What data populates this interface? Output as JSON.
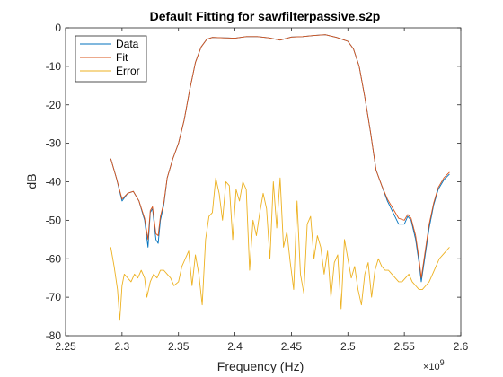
{
  "chart_data": {
    "type": "line",
    "title": "Default Fitting for sawfilterpassive.s2p",
    "xlabel": "Frequency (Hz)",
    "ylabel": "dB",
    "x_multiplier_label": "×10",
    "x_multiplier_exponent": "9",
    "xlim": [
      2.25,
      2.6
    ],
    "ylim": [
      -80,
      0
    ],
    "x_ticks": [
      2.25,
      2.3,
      2.35,
      2.4,
      2.45,
      2.5,
      2.55,
      2.6
    ],
    "x_tick_labels": [
      "2.25",
      "2.3",
      "2.35",
      "2.4",
      "2.45",
      "2.5",
      "2.55",
      "2.6"
    ],
    "y_ticks": [
      0,
      -10,
      -20,
      -30,
      -40,
      -50,
      -60,
      -70,
      -80
    ],
    "y_tick_labels": [
      "0",
      "-10",
      "-20",
      "-30",
      "-40",
      "-50",
      "-60",
      "-70",
      "-80"
    ],
    "grid": false,
    "legend_position": "top-left",
    "series": [
      {
        "name": "Data",
        "color": "#0072BD",
        "x": [
          2.29,
          2.295,
          2.3,
          2.305,
          2.31,
          2.315,
          2.32,
          2.323,
          2.325,
          2.327,
          2.33,
          2.332,
          2.334,
          2.337,
          2.34,
          2.345,
          2.35,
          2.355,
          2.36,
          2.365,
          2.37,
          2.375,
          2.38,
          2.39,
          2.4,
          2.41,
          2.42,
          2.43,
          2.44,
          2.45,
          2.46,
          2.47,
          2.48,
          2.49,
          2.5,
          2.505,
          2.51,
          2.515,
          2.52,
          2.525,
          2.53,
          2.535,
          2.54,
          2.545,
          2.55,
          2.553,
          2.556,
          2.56,
          2.563,
          2.565,
          2.568,
          2.572,
          2.576,
          2.58,
          2.585,
          2.59
        ],
        "y": [
          -34,
          -39,
          -45,
          -43,
          -42.5,
          -45,
          -50,
          -57,
          -48,
          -47,
          -55,
          -56,
          -50,
          -46,
          -39,
          -34,
          -30,
          -24,
          -16,
          -9,
          -5,
          -3,
          -2.5,
          -2.6,
          -2.7,
          -2.3,
          -2.3,
          -2.6,
          -3.2,
          -2.4,
          -2.3,
          -2,
          -1.8,
          -2.5,
          -3.5,
          -5.5,
          -10,
          -18,
          -27,
          -37,
          -41,
          -45,
          -48,
          -51,
          -51,
          -49,
          -50,
          -55,
          -61,
          -66,
          -60,
          -52,
          -46,
          -42,
          -39.5,
          -38
        ]
      },
      {
        "name": "Fit",
        "color": "#D95319",
        "x": [
          2.29,
          2.295,
          2.3,
          2.305,
          2.31,
          2.315,
          2.32,
          2.323,
          2.325,
          2.327,
          2.33,
          2.332,
          2.334,
          2.337,
          2.34,
          2.345,
          2.35,
          2.355,
          2.36,
          2.365,
          2.37,
          2.375,
          2.38,
          2.39,
          2.4,
          2.41,
          2.42,
          2.43,
          2.44,
          2.45,
          2.46,
          2.47,
          2.48,
          2.49,
          2.5,
          2.505,
          2.51,
          2.515,
          2.52,
          2.525,
          2.53,
          2.535,
          2.54,
          2.545,
          2.55,
          2.553,
          2.556,
          2.56,
          2.563,
          2.565,
          2.568,
          2.572,
          2.576,
          2.58,
          2.585,
          2.59
        ],
        "y": [
          -34,
          -39,
          -44.5,
          -43,
          -42.5,
          -45,
          -49.5,
          -55,
          -47.5,
          -46.5,
          -53.5,
          -54,
          -49,
          -45.5,
          -39,
          -34,
          -30,
          -24,
          -16,
          -9,
          -5,
          -3,
          -2.5,
          -2.6,
          -2.7,
          -2.3,
          -2.3,
          -2.6,
          -3.2,
          -2.4,
          -2.3,
          -2,
          -1.8,
          -2.5,
          -3.5,
          -5.5,
          -10,
          -18,
          -27,
          -37,
          -41,
          -44.5,
          -47,
          -49.5,
          -50,
          -48.5,
          -49.5,
          -54,
          -60,
          -65,
          -59,
          -51,
          -45.5,
          -41.5,
          -39,
          -37.5
        ]
      },
      {
        "name": "Error",
        "color": "#EDB120",
        "x": [
          2.29,
          2.293,
          2.296,
          2.298,
          2.3,
          2.302,
          2.305,
          2.308,
          2.311,
          2.314,
          2.317,
          2.32,
          2.322,
          2.325,
          2.328,
          2.331,
          2.334,
          2.337,
          2.34,
          2.343,
          2.346,
          2.35,
          2.353,
          2.356,
          2.359,
          2.362,
          2.365,
          2.368,
          2.371,
          2.374,
          2.377,
          2.38,
          2.383,
          2.386,
          2.389,
          2.392,
          2.395,
          2.398,
          2.401,
          2.404,
          2.407,
          2.41,
          2.413,
          2.416,
          2.419,
          2.422,
          2.425,
          2.428,
          2.431,
          2.434,
          2.437,
          2.44,
          2.443,
          2.446,
          2.449,
          2.452,
          2.455,
          2.458,
          2.461,
          2.464,
          2.467,
          2.47,
          2.473,
          2.476,
          2.479,
          2.482,
          2.485,
          2.488,
          2.491,
          2.494,
          2.497,
          2.5,
          2.503,
          2.506,
          2.509,
          2.512,
          2.515,
          2.518,
          2.521,
          2.524,
          2.527,
          2.53,
          2.533,
          2.536,
          2.539,
          2.542,
          2.545,
          2.548,
          2.551,
          2.554,
          2.557,
          2.56,
          2.563,
          2.566,
          2.569,
          2.572,
          2.575,
          2.578,
          2.581,
          2.584,
          2.587,
          2.59
        ],
        "y": [
          -57,
          -62,
          -68,
          -76,
          -67,
          -64,
          -65,
          -66,
          -64,
          -65,
          -63,
          -65,
          -70,
          -66,
          -64,
          -65,
          -63,
          -63,
          -64,
          -65,
          -67,
          -66,
          -62,
          -60,
          -58,
          -67,
          -59,
          -64,
          -72,
          -55,
          -49,
          -48,
          -39,
          -43,
          -50,
          -40,
          -41,
          -55,
          -42,
          -45,
          -40,
          -42,
          -63,
          -50,
          -54,
          -48,
          -43,
          -47,
          -60,
          -40,
          -52,
          -39,
          -57,
          -53,
          -61,
          -68,
          -45,
          -64,
          -69,
          -51,
          -49,
          -60,
          -54,
          -57,
          -64,
          -58,
          -70,
          -61,
          -59,
          -73,
          -55,
          -60,
          -65,
          -62,
          -68,
          -72,
          -64,
          -61,
          -70,
          -63,
          -60,
          -62,
          -63,
          -63,
          -64,
          -65,
          -66,
          -66,
          -65,
          -64,
          -66,
          -67,
          -68,
          -68,
          -67,
          -66,
          -64,
          -62,
          -60,
          -59,
          -58,
          -57
        ]
      }
    ]
  }
}
